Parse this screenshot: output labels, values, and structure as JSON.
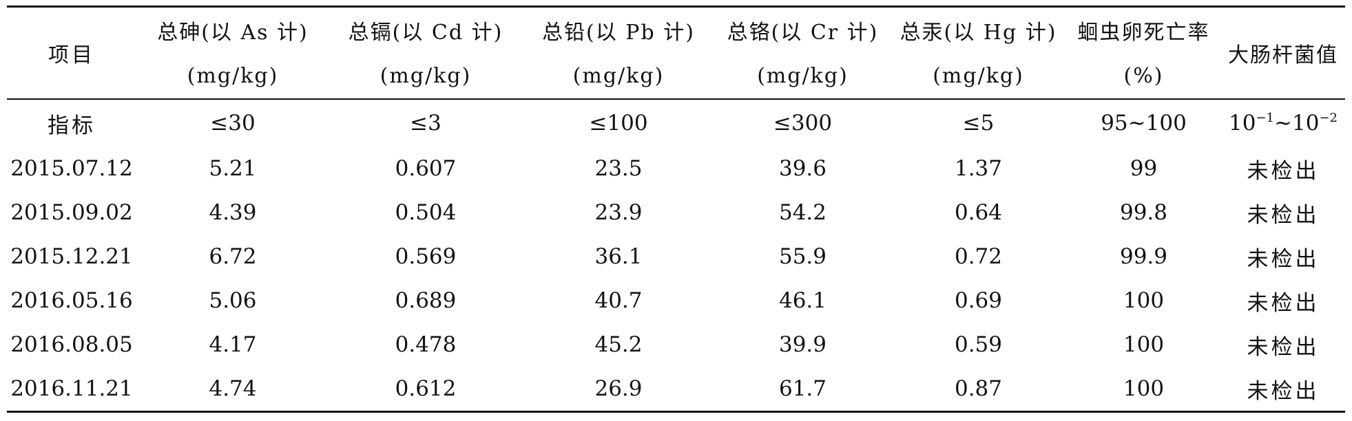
{
  "table": {
    "headers": [
      {
        "line1": "项目",
        "line2": ""
      },
      {
        "line1": "总砷(以 As 计)",
        "line2": "(mg/kg)"
      },
      {
        "line1": "总镉(以 Cd 计)",
        "line2": "(mg/kg)"
      },
      {
        "line1": "总铅(以 Pb 计)",
        "line2": "(mg/kg)"
      },
      {
        "line1": "总铬(以 Cr 计)",
        "line2": "(mg/kg)"
      },
      {
        "line1": "总汞(以 Hg 计)",
        "line2": "(mg/kg)"
      },
      {
        "line1": "蛔虫卵死亡率",
        "line2": "(%)"
      },
      {
        "line1": "大肠杆菌值",
        "line2": ""
      }
    ],
    "limit_row": {
      "label": "指标",
      "values": [
        "≤30",
        "≤3",
        "≤100",
        "≤300",
        "≤5",
        "95~100"
      ],
      "ecoli": {
        "base1": "10",
        "exp1": "−1",
        "sep": "~",
        "base2": "10",
        "exp2": "−2"
      }
    },
    "rows": [
      {
        "date": "2015.07.12",
        "as": "5.21",
        "cd": "0.607",
        "pb": "23.5",
        "cr": "39.6",
        "hg": "1.37",
        "egg": "99",
        "ecoli": "未检出"
      },
      {
        "date": "2015.09.02",
        "as": "4.39",
        "cd": "0.504",
        "pb": "23.9",
        "cr": "54.2",
        "hg": "0.64",
        "egg": "99.8",
        "ecoli": "未检出"
      },
      {
        "date": "2015.12.21",
        "as": "6.72",
        "cd": "0.569",
        "pb": "36.1",
        "cr": "55.9",
        "hg": "0.72",
        "egg": "99.9",
        "ecoli": "未检出"
      },
      {
        "date": "2016.05.16",
        "as": "5.06",
        "cd": "0.689",
        "pb": "40.7",
        "cr": "46.1",
        "hg": "0.69",
        "egg": "100",
        "ecoli": "未检出"
      },
      {
        "date": "2016.08.05",
        "as": "4.17",
        "cd": "0.478",
        "pb": "45.2",
        "cr": "39.9",
        "hg": "0.59",
        "egg": "100",
        "ecoli": "未检出"
      },
      {
        "date": "2016.11.21",
        "as": "4.74",
        "cd": "0.612",
        "pb": "26.9",
        "cr": "61.7",
        "hg": "0.87",
        "egg": "100",
        "ecoli": "未检出"
      }
    ]
  }
}
